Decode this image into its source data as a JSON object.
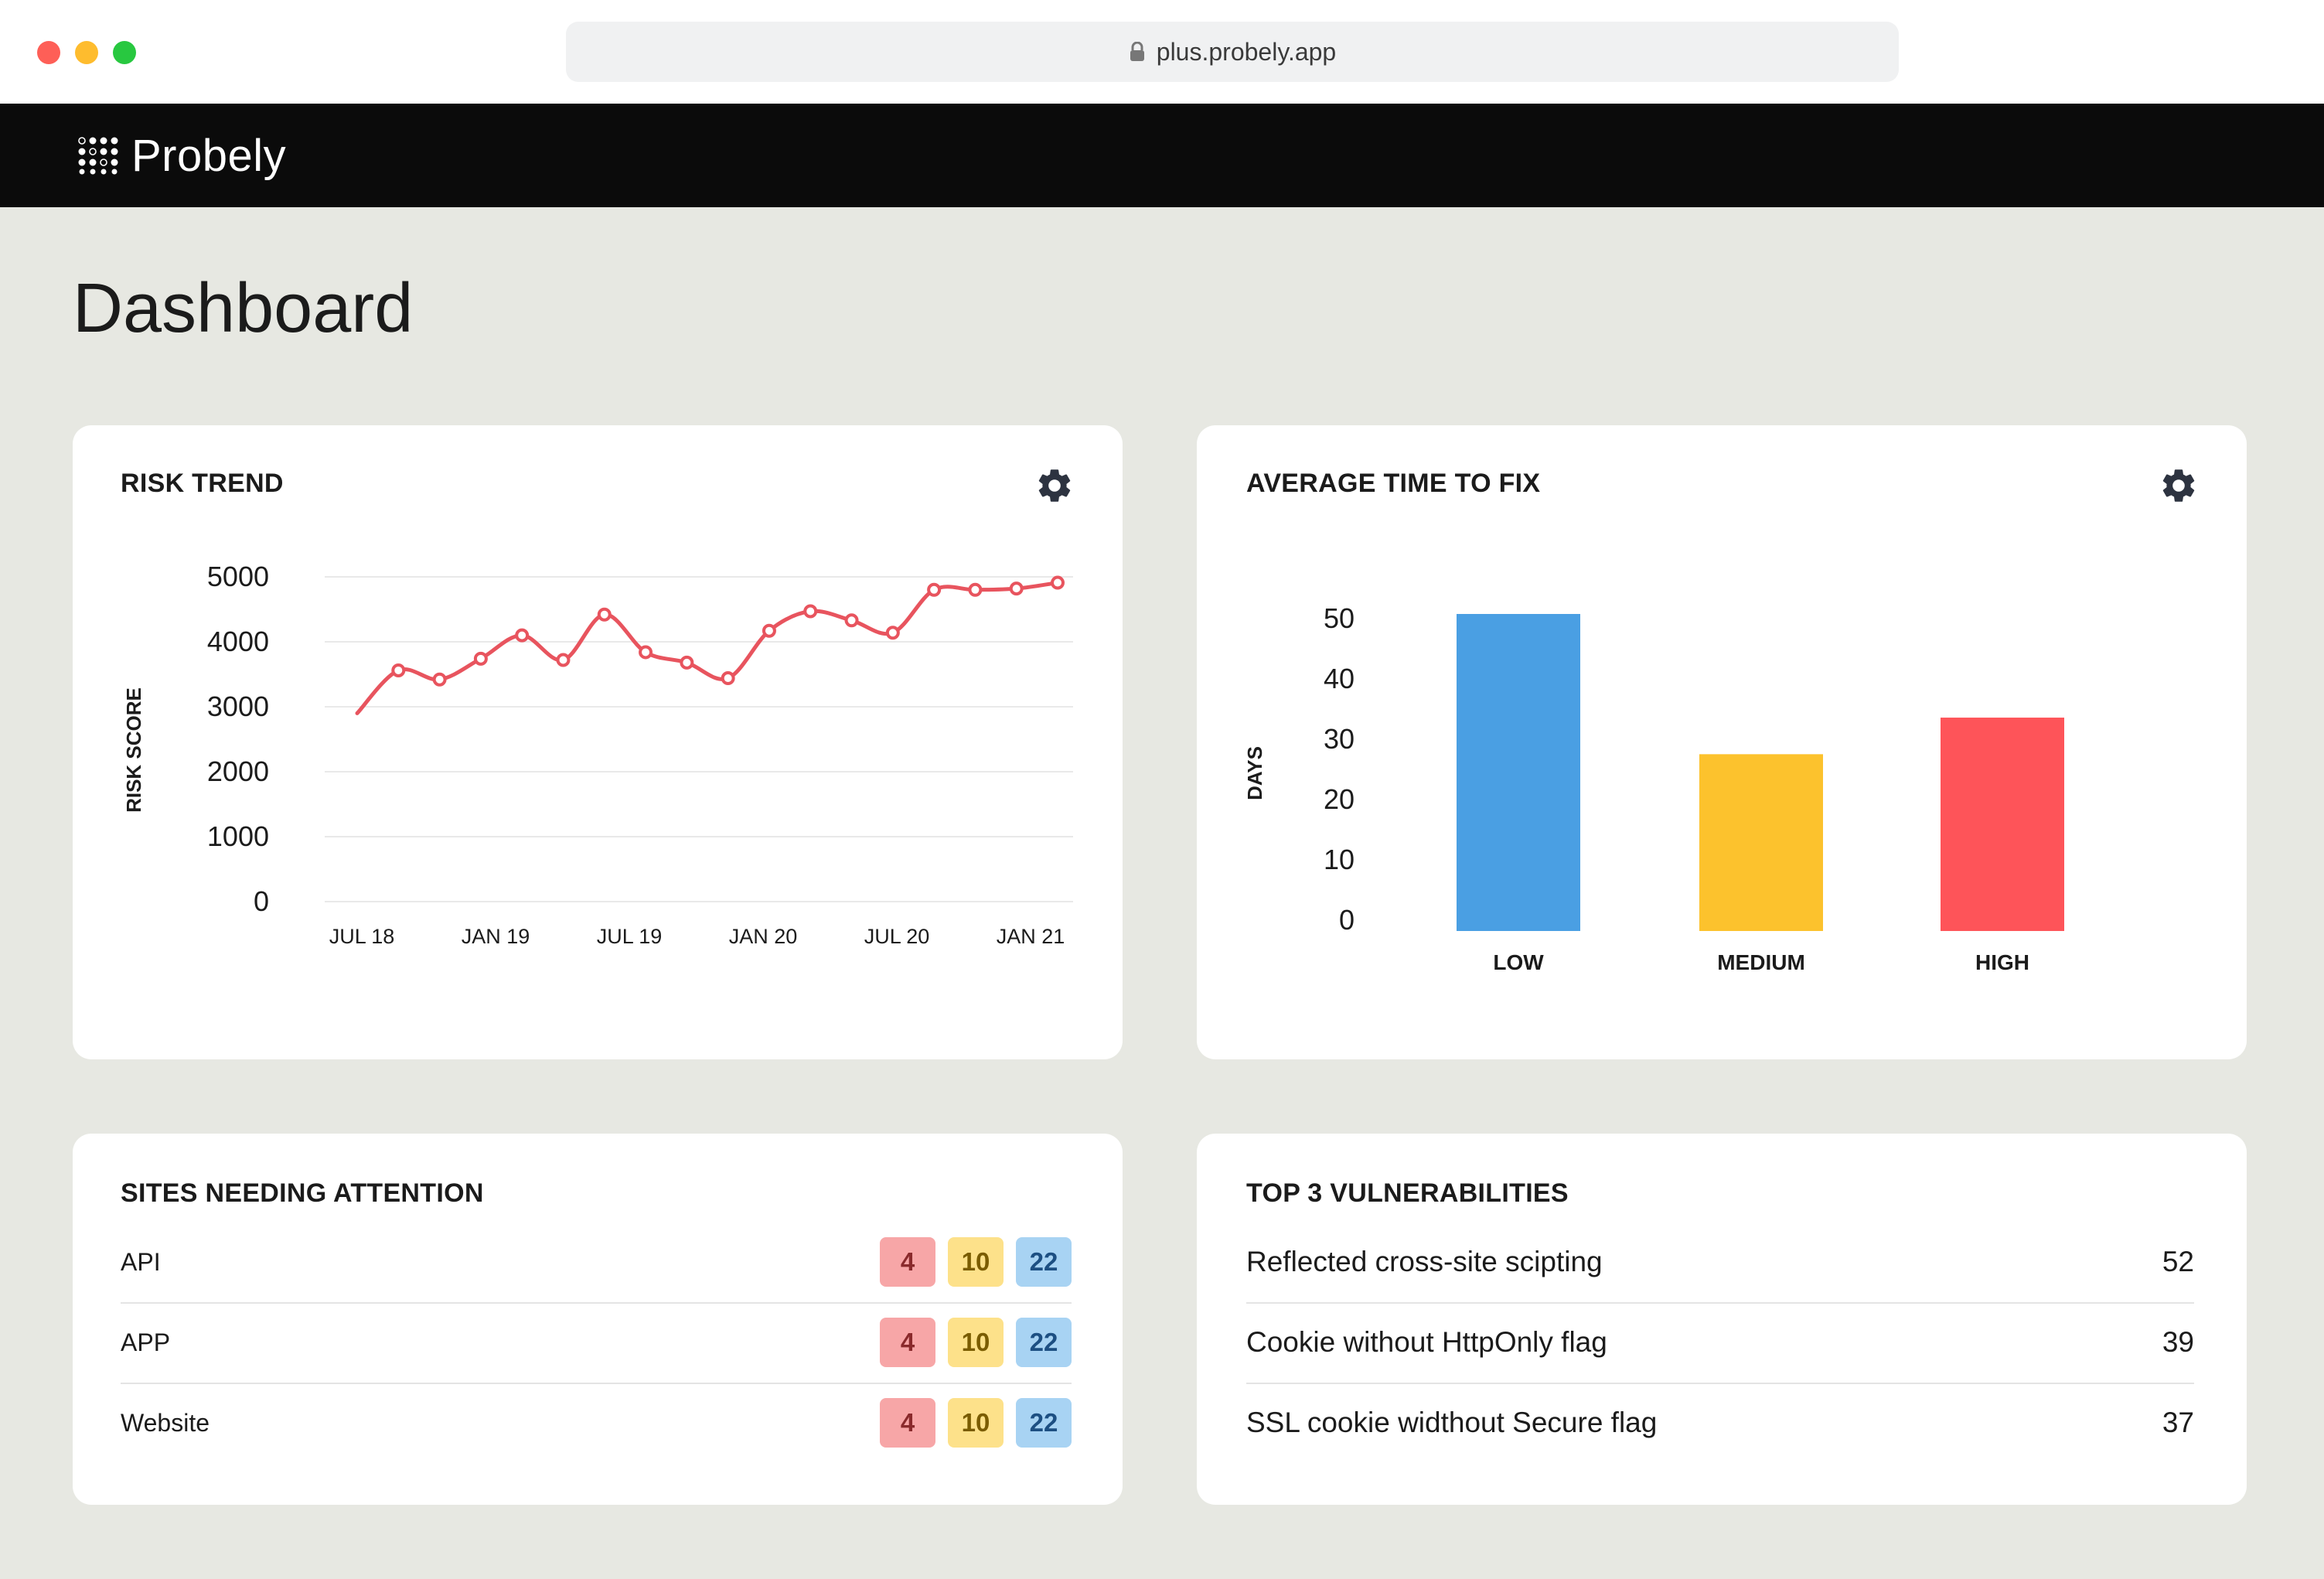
{
  "browser": {
    "url": "plus.probely.app"
  },
  "app": {
    "brand": "Probely"
  },
  "page": {
    "title": "Dashboard"
  },
  "colors": {
    "risk_line": "#e8545e",
    "low": "#4a9fe3",
    "medium": "#fcc22d",
    "high": "#fe5459"
  },
  "risk_trend": {
    "title": "RISK TREND",
    "chart_data": {
      "type": "line",
      "title": "RISK TREND",
      "ylabel": "RISK SCORE",
      "xlabel": "",
      "ylim": [
        0,
        5000
      ],
      "yticks": [
        "5000",
        "4000",
        "3000",
        "2000",
        "1000",
        "0"
      ],
      "xticks": [
        "JUL 18",
        "JAN 19",
        "JUL 19",
        "JAN 20",
        "JUL 20",
        "JAN 21"
      ],
      "grid": true,
      "series": [
        {
          "values": [
            2900,
            3560,
            3420,
            3740,
            4100,
            3720,
            4420,
            3840,
            3680,
            3440,
            4170,
            4470,
            4330,
            4140,
            4800,
            4800,
            4820,
            4910
          ]
        }
      ]
    }
  },
  "avg_time_to_fix": {
    "title": "AVERAGE TIME TO FIX",
    "chart_data": {
      "type": "bar",
      "title": "AVERAGE TIME TO FIX",
      "ylabel": "DAYS",
      "xlabel": "",
      "ylim": [
        0,
        52
      ],
      "yticks": [
        "50",
        "40",
        "30",
        "20",
        "10",
        "0"
      ],
      "categories": [
        "LOW",
        "MEDIUM",
        "HIGH"
      ],
      "values": [
        52,
        29,
        35
      ],
      "colors": [
        "#4a9fe3",
        "#fcc22d",
        "#fe5459"
      ],
      "grid": false
    }
  },
  "sites": {
    "title": "SITES NEEDING ATTENTION",
    "rows": [
      {
        "name": "API",
        "high": "4",
        "medium": "10",
        "low": "22"
      },
      {
        "name": "APP",
        "high": "4",
        "medium": "10",
        "low": "22"
      },
      {
        "name": "Website",
        "high": "4",
        "medium": "10",
        "low": "22"
      }
    ]
  },
  "vulnerabilities": {
    "title": "TOP 3 VULNERABILITIES",
    "rows": [
      {
        "name": "Reflected cross-site scipting",
        "count": "52"
      },
      {
        "name": "Cookie without HttpOnly flag",
        "count": "39"
      },
      {
        "name": "SSL cookie widthout Secure flag",
        "count": "37"
      }
    ]
  }
}
